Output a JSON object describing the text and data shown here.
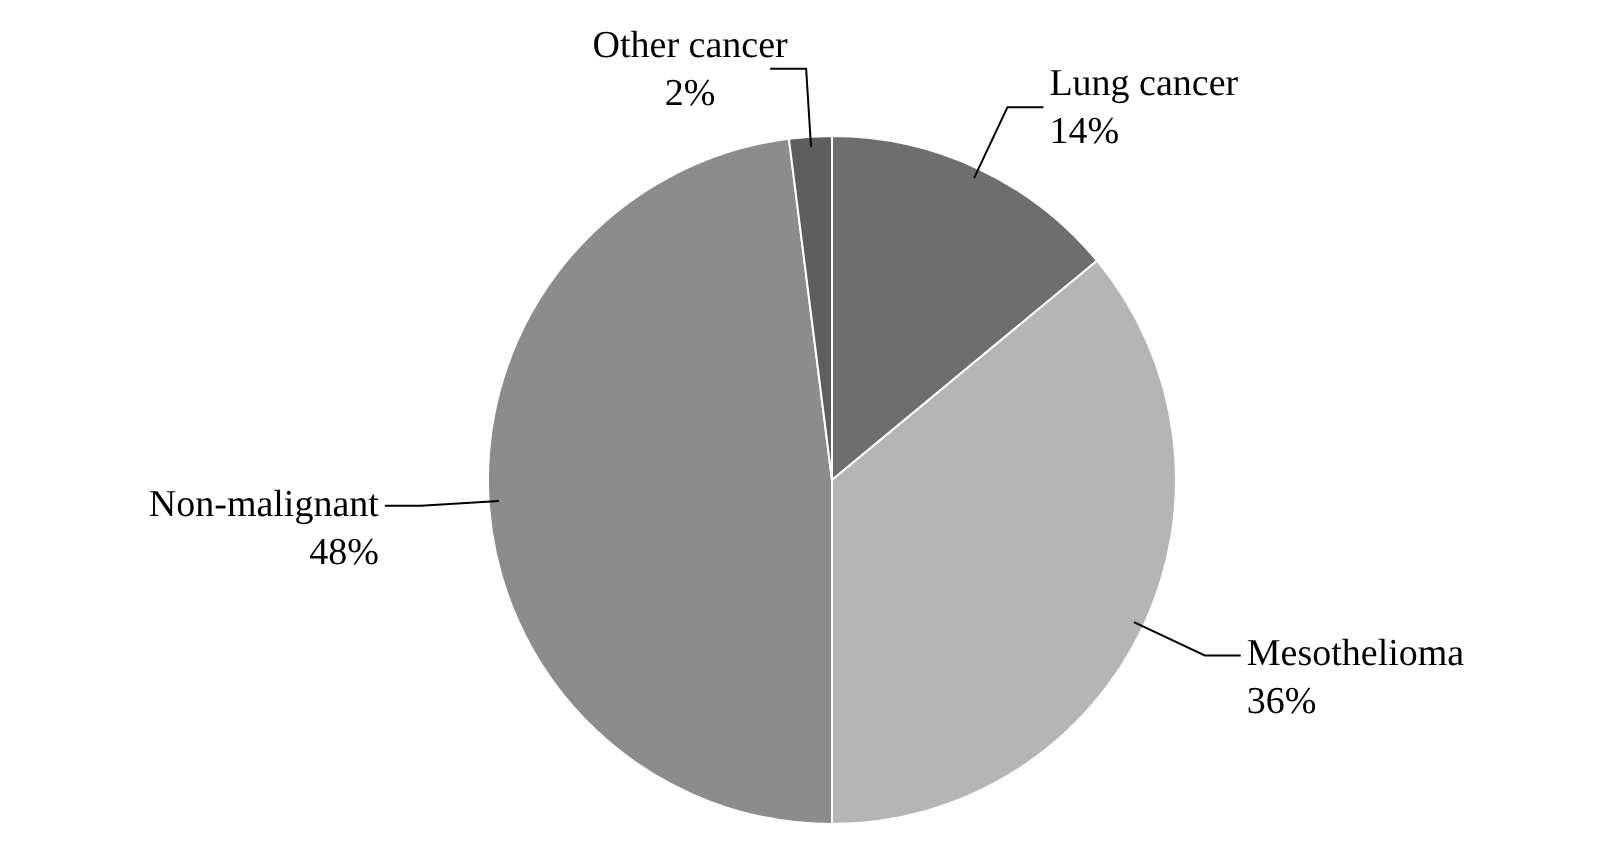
{
  "chart_data": {
    "type": "pie",
    "categories": [
      "Lung cancer",
      "Mesothelioma",
      "Non-malignant",
      "Other cancer"
    ],
    "values": [
      14,
      36,
      48,
      2
    ],
    "value_labels": [
      "14%",
      "36%",
      "48%",
      "2%"
    ],
    "colors": [
      "#6e6e6e",
      "#b5b5b5",
      "#8c8c8c",
      "#5e5e5e"
    ],
    "legend": false
  }
}
